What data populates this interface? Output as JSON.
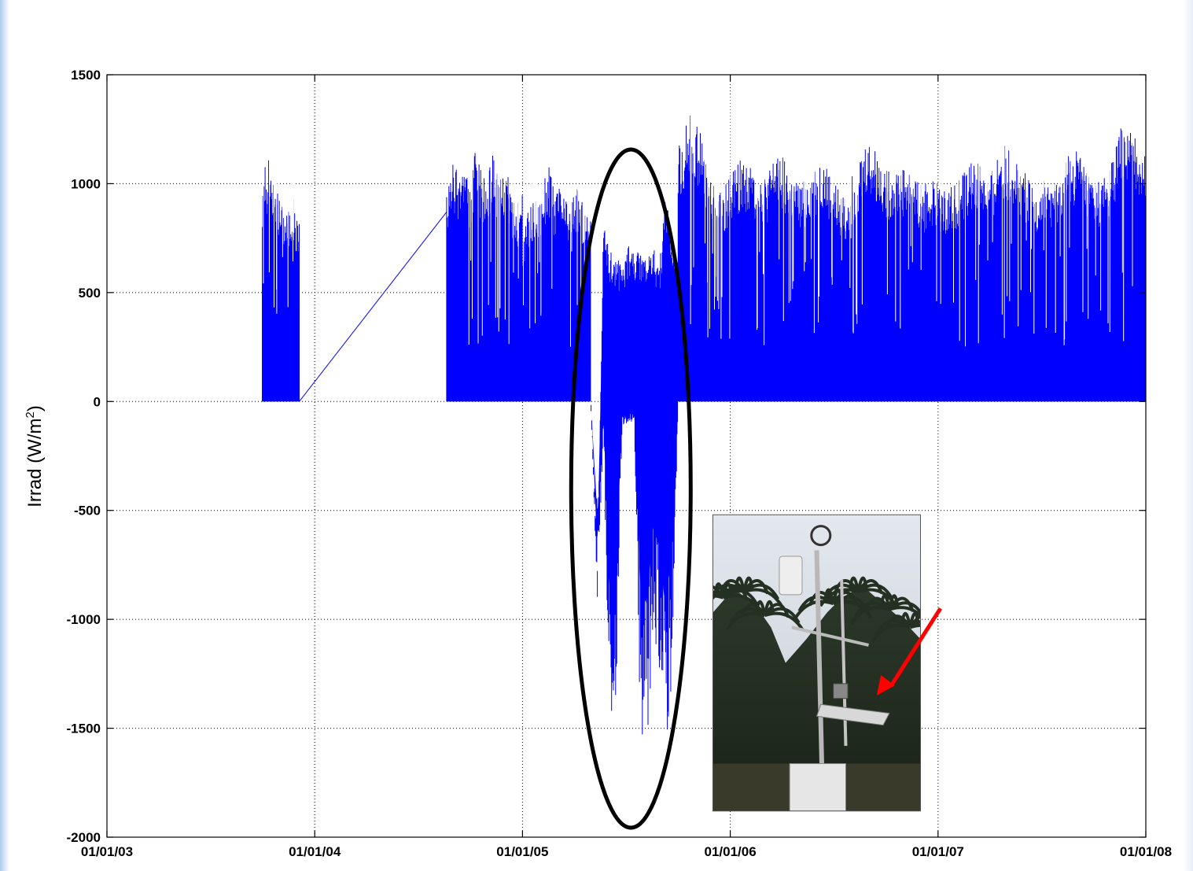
{
  "chart_data": {
    "type": "line",
    "title": "",
    "xlabel": "",
    "ylabel": "Irrad (W/m",
    "ylabel_sup": "2",
    "ylabel_close": ")",
    "grid": true,
    "xlim": [
      "2003-01-01",
      "2008-01-01"
    ],
    "ylim": [
      -2000,
      1500
    ],
    "x_ticks": [
      "01/01/03",
      "01/01/04",
      "01/01/05",
      "01/01/06",
      "01/01/07",
      "01/01/08"
    ],
    "y_ticks": [
      1500,
      1000,
      500,
      0,
      -500,
      -1000,
      -1500,
      -2000
    ],
    "series": [
      {
        "color": "#0000ff",
        "segments": [
          {
            "start": "2003-10-01",
            "end": "2003-12-05",
            "daily_max": [
              1020,
              1100,
              1110,
              1080,
              980,
              960,
              920,
              890,
              900,
              960,
              880,
              820
            ],
            "daily_min": 0
          },
          {
            "connector": [
              [
                "2003-12-05",
                0
              ],
              [
                "2004-08-20",
                870
              ]
            ]
          },
          {
            "start": "2004-08-20",
            "end": "2004-12-31",
            "daily_max": [
              950,
              1090,
              1060,
              1100,
              980,
              1170,
              1050,
              1010,
              1180,
              990,
              1120,
              980,
              900,
              950
            ],
            "daily_min": 0
          },
          {
            "start": "2005-01-01",
            "end": "2005-04-30",
            "daily_max": [
              740,
              880,
              950,
              920,
              1010,
              1100,
              970,
              1000,
              940,
              900,
              1000,
              960,
              870,
              850
            ],
            "daily_min": 0
          },
          {
            "start": "2005-05-01",
            "end": "2005-09-30",
            "daily_max": [
              -20,
              -940,
              820,
              700,
              670,
              620,
              720,
              680,
              700,
              640,
              730,
              590,
              980,
              750,
              700
            ],
            "daily_min": [
              -50,
              -940,
              -120,
              -1600,
              -1480,
              -130,
              -100,
              -110,
              -1570,
              -1690,
              -1050,
              -1200,
              -1720,
              -1300,
              -140
            ]
          },
          {
            "start": "2005-10-01",
            "end": "2007-12-31",
            "daily_max": [
              1170,
              1330,
              1240,
              1010,
              960,
              1090,
              1120,
              1060,
              1030,
              1180,
              1050,
              990,
              1060,
              1120,
              1000,
              950,
              1080,
              1210,
              1130,
              1060,
              1090,
              1080,
              990,
              1020,
              980,
              1010,
              1080,
              1120,
              1030,
              1190,
              1150,
              1080,
              960,
              1030,
              1010,
              1130,
              1170,
              1040,
              1000,
              1120,
              1290,
              1230,
              1180
            ],
            "daily_min": 0
          }
        ]
      }
    ],
    "annotations": {
      "ellipse": {
        "center": [
          "2005-07-10",
          -400
        ],
        "color": "#000000"
      },
      "inset_photo": {
        "subject": "weather station mast with sensors among palm trees",
        "x": [
          "2005-12-01",
          "2006-12-01"
        ],
        "y": [
          -1880,
          -520
        ]
      },
      "arrow": {
        "color": "#ff0000",
        "from": [
          "2007-01-05",
          -950
        ],
        "to": [
          "2006-09-15",
          -1350
        ]
      }
    }
  }
}
